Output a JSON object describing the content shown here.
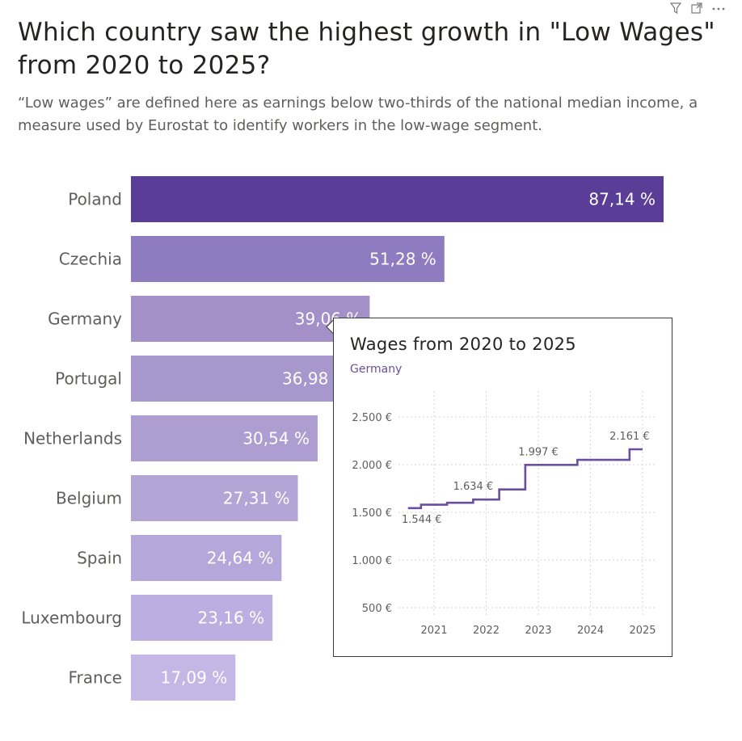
{
  "header": {
    "title": "Which country saw the highest growth in \"Low Wages\" from 2020 to 2025?",
    "subtitle": "“Low wages” are defined here as earnings below two-thirds of the national median income, a measure used by Eurostat to identify workers in the low-wage segment."
  },
  "toolbar": {
    "icons": [
      "filter-icon",
      "focus-mode-icon",
      "more-options-icon"
    ]
  },
  "chart_data": [
    {
      "type": "bar",
      "orientation": "horizontal",
      "categories": [
        "Poland",
        "Czechia",
        "Germany",
        "Portugal",
        "Netherlands",
        "Belgium",
        "Spain",
        "Luxembourg",
        "France"
      ],
      "values": [
        87.14,
        51.28,
        39.06,
        36.98,
        30.54,
        27.31,
        24.64,
        23.16,
        17.09
      ],
      "data_labels": [
        "87,14 %",
        "51,28 %",
        "39,06 %",
        "36,98 %",
        "30,54 %",
        "27,31 %",
        "24,64 %",
        "23,16 %",
        "17,09 %"
      ],
      "colors": [
        "#5a3d96",
        "#8f7bbf",
        "#a390c9",
        "#a797cd",
        "#ad9dd1",
        "#b3a5d6",
        "#b6a7db",
        "#bcaee0",
        "#c4b7e5"
      ],
      "highlighted": "Germany"
    },
    {
      "type": "line",
      "title": "Wages from 2020 to 2025",
      "subtitle": "Germany",
      "series": [
        {
          "name": "Germany",
          "color": "#6a4fa0",
          "x": [
            2020.5,
            2020.75,
            2021.25,
            2021.75,
            2022.25,
            2022.75,
            2023.75,
            2024.75,
            2025
          ],
          "values": [
            1544,
            1580,
            1600,
            1634,
            1740,
            1997,
            2050,
            2161,
            2161
          ],
          "interpolation": "step"
        }
      ],
      "data_labels": [
        {
          "x": 2020.5,
          "text": "1.544 €"
        },
        {
          "x": 2021.75,
          "text": "1.634 €"
        },
        {
          "x": 2023.0,
          "text": "1.997 €"
        },
        {
          "x": 2024.75,
          "text": "2.161 €"
        }
      ],
      "x_ticks": [
        "2021",
        "2022",
        "2023",
        "2024",
        "2025"
      ],
      "y_ticks": [
        "500 €",
        "1.000 €",
        "1.500 €",
        "2.000 €",
        "2.500 €"
      ],
      "ylim": [
        500,
        2500
      ],
      "grid": true
    }
  ]
}
